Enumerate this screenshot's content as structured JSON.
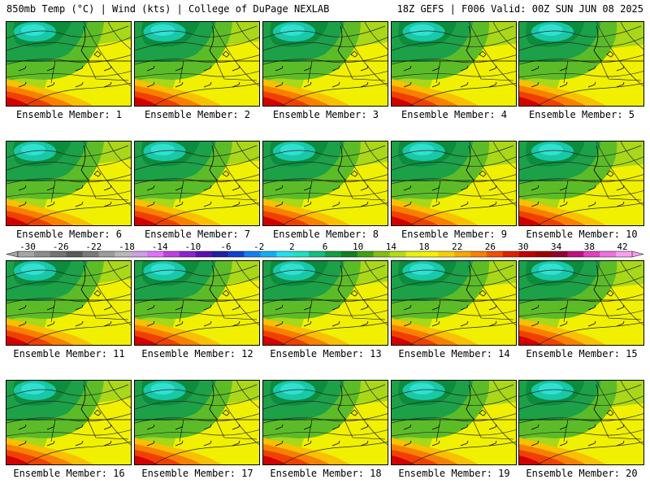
{
  "header": {
    "left": "850mb Temp (°C) | Wind (kts) | College of DuPage NEXLAB",
    "right": "18Z GEFS | F006 Valid: 00Z SUN JUN 08 2025"
  },
  "panels": [
    {
      "label": "Ensemble Member: 1"
    },
    {
      "label": "Ensemble Member: 2"
    },
    {
      "label": "Ensemble Member: 3"
    },
    {
      "label": "Ensemble Member: 4"
    },
    {
      "label": "Ensemble Member: 5"
    },
    {
      "label": "Ensemble Member: 6"
    },
    {
      "label": "Ensemble Member: 7"
    },
    {
      "label": "Ensemble Member: 8"
    },
    {
      "label": "Ensemble Member: 9"
    },
    {
      "label": "Ensemble Member: 10"
    },
    {
      "label": "Ensemble Member: 11"
    },
    {
      "label": "Ensemble Member: 12"
    },
    {
      "label": "Ensemble Member: 13"
    },
    {
      "label": "Ensemble Member: 14"
    },
    {
      "label": "Ensemble Member: 15"
    },
    {
      "label": "Ensemble Member: 16"
    },
    {
      "label": "Ensemble Member: 17"
    },
    {
      "label": "Ensemble Member: 18"
    },
    {
      "label": "Ensemble Member: 19"
    },
    {
      "label": "Ensemble Member: 20"
    }
  ],
  "colorbar": {
    "labels": [
      "-30",
      "-26",
      "-22",
      "-18",
      "-14",
      "-10",
      "-6",
      "-2",
      "2",
      "6",
      "10",
      "14",
      "18",
      "22",
      "26",
      "30",
      "34",
      "38",
      "42"
    ],
    "colors": [
      "#a6a6a6",
      "#8c8c8c",
      "#737373",
      "#5a5a5a",
      "#7a7a7a",
      "#9c9c9c",
      "#b8b8b8",
      "#cda0e0",
      "#e070ff",
      "#c040e0",
      "#9020d0",
      "#5a10b0",
      "#2020a0",
      "#1040d0",
      "#1080f0",
      "#10b0f0",
      "#20e0f0",
      "#20e0c0",
      "#10c080",
      "#10a040",
      "#108020",
      "#40a010",
      "#80c010",
      "#b0e010",
      "#e8f010",
      "#f8f000",
      "#f8d000",
      "#f8a800",
      "#f88000",
      "#f05000",
      "#e02000",
      "#c00000",
      "#a00000",
      "#900030",
      "#c01080",
      "#e040c0",
      "#f070e0",
      "#f8a0f0"
    ]
  },
  "palette": {
    "deep_green": "#0c8c3c",
    "green": "#1ca048",
    "light_green": "#5cbc28",
    "yellow_green": "#a8d818",
    "yellow": "#f0f000",
    "gold": "#f8c000",
    "orange": "#f88000",
    "red_orange": "#f04000",
    "red": "#d00000",
    "teal": "#18c8a8",
    "cyan": "#30e0d0"
  }
}
